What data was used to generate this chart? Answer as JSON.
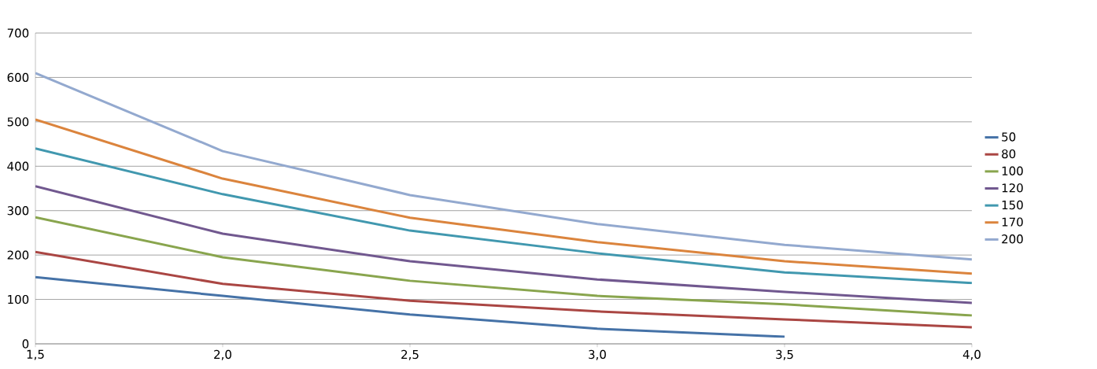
{
  "chart_data": {
    "type": "line",
    "categories": [
      "1,5",
      "2,0",
      "2,5",
      "3,0",
      "3,5",
      "4,0"
    ],
    "series": [
      {
        "name": "50",
        "color": "#4572a7",
        "values": [
          150,
          108,
          66,
          34,
          16,
          null
        ]
      },
      {
        "name": "80",
        "color": "#aa4643",
        "values": [
          207,
          135,
          97,
          73,
          55,
          37
        ]
      },
      {
        "name": "100",
        "color": "#89a54e",
        "values": [
          285,
          195,
          142,
          108,
          89,
          64
        ]
      },
      {
        "name": "120",
        "color": "#71588f",
        "values": [
          355,
          248,
          186,
          145,
          117,
          92
        ]
      },
      {
        "name": "150",
        "color": "#4198af",
        "values": [
          440,
          337,
          255,
          204,
          161,
          137
        ]
      },
      {
        "name": "170",
        "color": "#db843d",
        "values": [
          505,
          372,
          284,
          229,
          186,
          158
        ]
      },
      {
        "name": "200",
        "color": "#93a9cf",
        "values": [
          610,
          434,
          335,
          270,
          223,
          190
        ]
      }
    ],
    "ylim": [
      0,
      700
    ],
    "yticks": [
      0,
      100,
      200,
      300,
      400,
      500,
      600,
      700
    ],
    "grid": "y",
    "legend": "right",
    "marker": "none",
    "line_style": "solid"
  }
}
